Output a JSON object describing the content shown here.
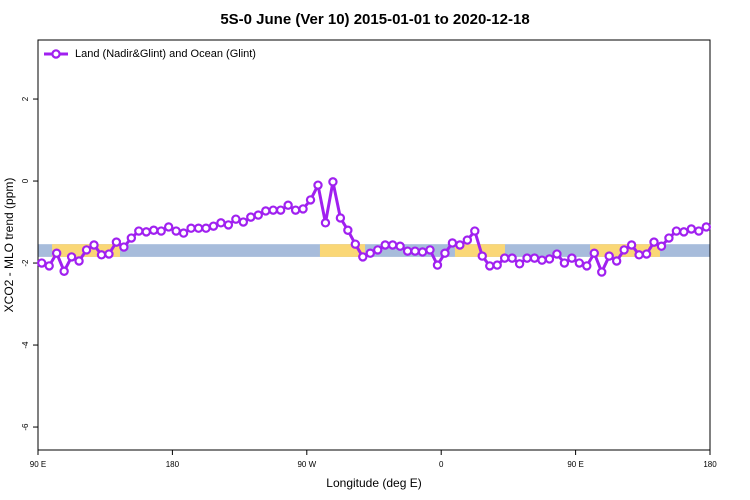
{
  "chart_data": {
    "type": "line",
    "title": "5S-0 June (Ver 10)   2015-01-01 to 2020-12-18",
    "xlabel": "Longitude (deg E)",
    "ylabel": "XCO2 - MLO trend (ppm)",
    "xlim": [
      90,
      540
    ],
    "ylim": [
      -6.56,
      3.44
    ],
    "xticks": [
      {
        "value": 90,
        "label": "90 E"
      },
      {
        "value": 180,
        "label": "180"
      },
      {
        "value": 270,
        "label": "90 W"
      },
      {
        "value": 360,
        "label": "0"
      },
      {
        "value": 450,
        "label": "90 E"
      },
      {
        "value": 540,
        "label": "180"
      }
    ],
    "yticks": [
      -6,
      -4,
      -2,
      0,
      2
    ],
    "legend": "top-left",
    "band": {
      "ylim": [
        -1.85,
        -1.54
      ],
      "color": "#a7bcdb",
      "segments": [
        {
          "xlim": [
            99.4,
            144.9
          ],
          "color": "#fad776"
        },
        {
          "xlim": [
            278.8,
            309
          ],
          "color": "#fad776"
        },
        {
          "xlim": [
            369.2,
            402.7
          ],
          "color": "#fad776"
        },
        {
          "xlim": [
            459.7,
            506.5
          ],
          "color": "#fad776"
        }
      ]
    },
    "series": [
      {
        "name": "Land (Nadir&Glint) and Ocean (Glint)",
        "color": "#a020f0",
        "x": [
          92.5,
          97.5,
          102.5,
          107.5,
          112.5,
          117.5,
          122.5,
          127.5,
          132.5,
          137.5,
          142.5,
          147.5,
          152.5,
          157.5,
          162.5,
          167.5,
          172.5,
          177.5,
          182.5,
          187.5,
          192.5,
          197.5,
          202.5,
          207.5,
          212.5,
          217.5,
          222.5,
          227.5,
          232.5,
          237.5,
          242.5,
          247.5,
          252.5,
          257.5,
          262.5,
          267.5,
          272.5,
          277.5,
          282.5,
          287.5,
          292.5,
          297.5,
          302.5,
          307.5,
          312.5,
          317.5,
          322.5,
          327.5,
          332.5,
          337.5,
          342.5,
          347.5,
          352.5,
          357.5,
          362.5,
          367.5,
          372.5,
          377.5,
          382.5,
          387.5,
          392.5,
          397.5,
          402.5,
          407.5,
          412.5,
          417.5,
          422.5,
          427.5,
          432.5,
          437.5,
          442.5,
          447.5,
          452.5,
          457.5,
          462.5,
          467.5,
          472.5,
          477.5,
          482.5,
          487.5,
          492.5,
          497.5,
          502.5,
          507.5,
          512.5,
          517.5,
          522.5,
          527.5,
          532.5,
          537.5
        ],
        "values": [
          -2.0,
          -2.07,
          -1.76,
          -2.2,
          -1.85,
          -1.95,
          -1.68,
          -1.56,
          -1.8,
          -1.78,
          -1.49,
          -1.61,
          -1.39,
          -1.22,
          -1.24,
          -1.2,
          -1.22,
          -1.12,
          -1.22,
          -1.27,
          -1.15,
          -1.15,
          -1.15,
          -1.1,
          -1.02,
          -1.07,
          -0.93,
          -1.0,
          -0.88,
          -0.83,
          -0.73,
          -0.71,
          -0.71,
          -0.59,
          -0.71,
          -0.68,
          -0.46,
          -0.1,
          -1.02,
          -0.02,
          -0.9,
          -1.2,
          -1.54,
          -1.85,
          -1.76,
          -1.68,
          -1.56,
          -1.56,
          -1.59,
          -1.71,
          -1.71,
          -1.73,
          -1.68,
          -2.05,
          -1.76,
          -1.51,
          -1.56,
          -1.44,
          -1.22,
          -1.83,
          -2.07,
          -2.05,
          -1.88,
          -1.88,
          -2.02,
          -1.88,
          -1.88,
          -1.93,
          -1.9,
          -1.78,
          -2.0,
          -1.88,
          -2.0,
          -2.07,
          -1.76,
          -2.22,
          -1.83,
          -1.95,
          -1.68,
          -1.56,
          -1.8,
          -1.78,
          -1.49,
          -1.59,
          -1.39,
          -1.22,
          -1.24,
          -1.17,
          -1.22,
          -1.12
        ]
      }
    ]
  }
}
